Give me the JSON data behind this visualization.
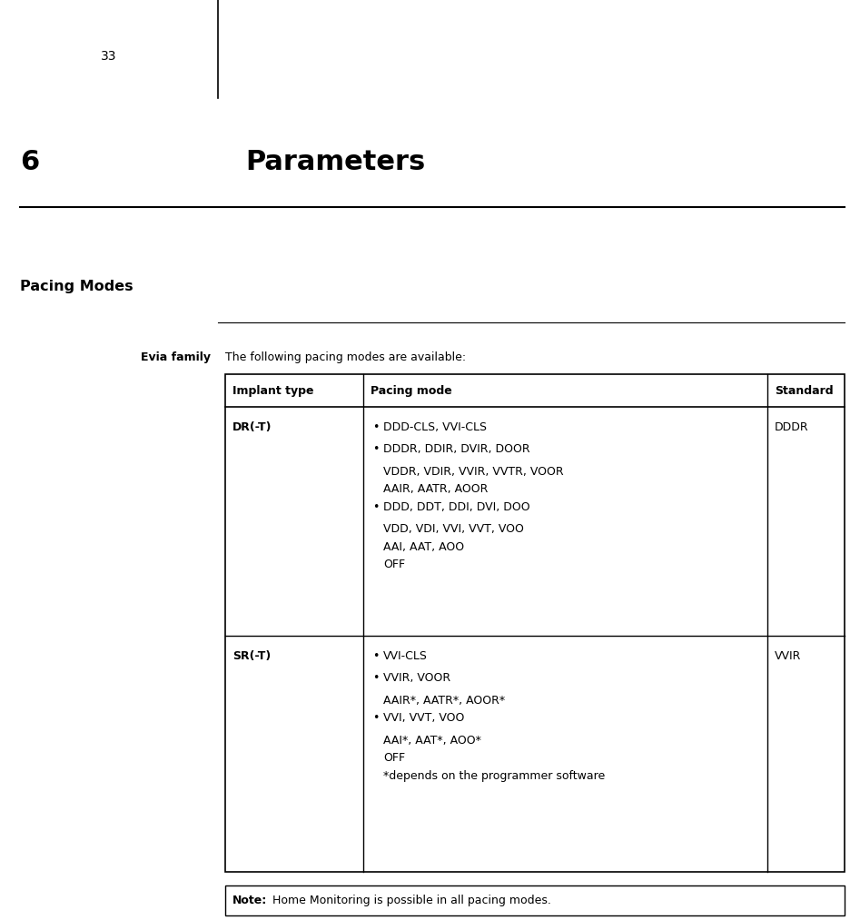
{
  "page_number": "33",
  "chapter_number": "6",
  "chapter_title": "Parameters",
  "section_title": "Pacing Modes",
  "evia_label": "Evia family",
  "evia_desc": "The following pacing modes are available:",
  "table_headers": [
    "Implant type",
    "Pacing mode",
    "Standard"
  ],
  "row1_label": "DR(-T)",
  "row1_standard": "DDDR",
  "row1_items": [
    {
      "bullet": true,
      "text": "DDD-CLS, VVI-CLS"
    },
    {
      "bullet": true,
      "text": "DDDR, DDIR, DVIR, DOOR"
    },
    {
      "bullet": false,
      "text": "VDDR, VDIR, VVIR, VVTR, VOOR"
    },
    {
      "bullet": false,
      "text": "AAIR, AATR, AOOR"
    },
    {
      "bullet": true,
      "text": "DDD, DDT, DDI, DVI, DOO"
    },
    {
      "bullet": false,
      "text": "VDD, VDI, VVI, VVT, VOO"
    },
    {
      "bullet": false,
      "text": "AAI, AAT, AOO"
    },
    {
      "bullet": false,
      "text": "OFF"
    }
  ],
  "row2_label": "SR(-T)",
  "row2_standard": "VVIR",
  "row2_items": [
    {
      "bullet": true,
      "text": "VVI-CLS"
    },
    {
      "bullet": true,
      "text": "VVIR, VOOR"
    },
    {
      "bullet": false,
      "text": "AAIR*, AATR*, AOOR*"
    },
    {
      "bullet": true,
      "text": "VVI, VVT, VOO"
    },
    {
      "bullet": false,
      "text": "AAI*, AAT*, AOO*"
    },
    {
      "bullet": false,
      "text": "OFF"
    },
    {
      "bullet": false,
      "text": "*depends on the programmer software"
    }
  ],
  "note_bold": "Note:",
  "note_text": " Home Monitoring is possible in all pacing modes.",
  "bg_color": "#ffffff",
  "text_color": "#000000",
  "line_color": "#000000",
  "tfs": 9.0,
  "hfs": 9.0,
  "sfs": 11.5,
  "cfs": 22,
  "pfs": 10
}
